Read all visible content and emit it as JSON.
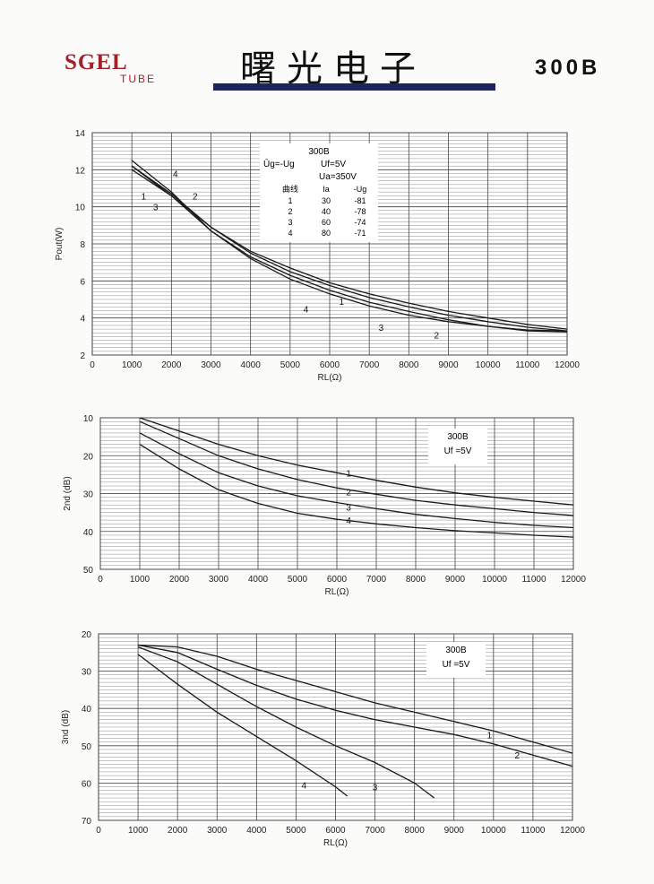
{
  "header": {
    "logo_main": "SGEL",
    "logo_sub": "TUBE",
    "company": "曙光电子",
    "model_code": "300B",
    "colors": {
      "logo": "#a3202a",
      "bar": "#1e2460"
    }
  },
  "chart_data": [
    {
      "type": "line",
      "xlabel": "RL(Ω)",
      "ylabel": "Pout(W)",
      "xlim": [
        0,
        12000
      ],
      "ylim": [
        2,
        14
      ],
      "x_ticks": [
        0,
        1000,
        2000,
        3000,
        4000,
        5000,
        6000,
        7000,
        8000,
        9000,
        10000,
        11000,
        12000
      ],
      "y_ticks": [
        2,
        4,
        6,
        8,
        10,
        12,
        14
      ],
      "grid": true,
      "legend": {
        "title": "300B",
        "line1_left": "Ūg=-Ug",
        "line1_right": "Uf=5V",
        "line2": "Ua=350V",
        "columns": [
          "曲线",
          "Ia",
          "-Ug"
        ],
        "rows": [
          [
            "1",
            "30",
            "-81"
          ],
          [
            "2",
            "40",
            "-78"
          ],
          [
            "3",
            "60",
            "-74"
          ],
          [
            "4",
            "80",
            "-71"
          ]
        ]
      },
      "series": [
        {
          "label": "1",
          "label_at": [
            [
              6300,
              4.9
            ],
            [
              1300,
              10.6
            ]
          ],
          "x": [
            1000,
            2000,
            3000,
            4000,
            5000,
            6000,
            7000,
            8000,
            9000,
            10000,
            11000,
            12000
          ],
          "y": [
            12.2,
            10.7,
            8.9,
            7.6,
            6.7,
            5.9,
            5.3,
            4.8,
            4.35,
            4.0,
            3.65,
            3.4
          ]
        },
        {
          "label": "2",
          "label_at": [
            [
              8700,
              3.1
            ],
            [
              2600,
              10.6
            ]
          ],
          "x": [
            1000,
            2000,
            3000,
            4000,
            5000,
            6000,
            7000,
            8000,
            9000,
            10000,
            11000,
            12000
          ],
          "y": [
            12.0,
            10.6,
            8.9,
            7.5,
            6.5,
            5.75,
            5.1,
            4.6,
            4.15,
            3.8,
            3.5,
            3.3
          ]
        },
        {
          "label": "3",
          "label_at": [
            [
              7300,
              3.5
            ],
            [
              1600,
              10.0
            ]
          ],
          "x": [
            1000,
            2000,
            3000,
            4000,
            5000,
            6000,
            7000,
            8000,
            9000,
            10000,
            11000,
            12000
          ],
          "y": [
            12.2,
            10.6,
            8.7,
            7.3,
            6.3,
            5.5,
            4.85,
            4.35,
            3.9,
            3.55,
            3.3,
            3.25
          ]
        },
        {
          "label": "4",
          "label_at": [
            [
              5400,
              4.5
            ],
            [
              2100,
              11.8
            ]
          ],
          "x": [
            1000,
            2000,
            3000,
            4000,
            5000,
            6000,
            7000,
            8000,
            9000,
            10000,
            11000,
            12000
          ],
          "y": [
            12.5,
            10.8,
            8.7,
            7.2,
            6.1,
            5.3,
            4.65,
            4.15,
            3.8,
            3.55,
            3.35,
            3.3
          ]
        }
      ]
    },
    {
      "type": "line",
      "xlabel": "RL(Ω)",
      "ylabel": "2nd (dB)",
      "xlim": [
        0,
        12000
      ],
      "ylim": [
        10,
        50
      ],
      "y_inverted": true,
      "x_ticks": [
        0,
        1000,
        2000,
        3000,
        4000,
        5000,
        6000,
        7000,
        8000,
        9000,
        10000,
        11000,
        12000
      ],
      "y_ticks": [
        10,
        20,
        30,
        40,
        50
      ],
      "grid": true,
      "legend": {
        "title": "300B",
        "line1": "Uf =5V"
      },
      "series": [
        {
          "label": "1",
          "label_at": [
            [
              6300,
              24.5
            ]
          ],
          "x": [
            1000,
            2000,
            3000,
            4000,
            5000,
            6000,
            7000,
            8000,
            9000,
            10000,
            11000,
            12000
          ],
          "y": [
            10.0,
            13.5,
            17.0,
            20.0,
            22.5,
            24.5,
            26.5,
            28.3,
            29.8,
            31.0,
            32.0,
            33.0
          ]
        },
        {
          "label": "2",
          "label_at": [
            [
              6300,
              29.5
            ]
          ],
          "x": [
            1000,
            2000,
            3000,
            4000,
            5000,
            6000,
            7000,
            8000,
            9000,
            10000,
            11000,
            12000
          ],
          "y": [
            11.0,
            15.5,
            20.0,
            23.5,
            26.3,
            28.5,
            30.2,
            31.8,
            33.0,
            34.0,
            35.0,
            35.8
          ]
        },
        {
          "label": "3",
          "label_at": [
            [
              6300,
              33.5
            ]
          ],
          "x": [
            1000,
            2000,
            3000,
            4000,
            5000,
            6000,
            7000,
            8000,
            9000,
            10000,
            11000,
            12000
          ],
          "y": [
            14.0,
            19.5,
            24.5,
            28.0,
            30.6,
            32.4,
            34.0,
            35.5,
            36.6,
            37.6,
            38.4,
            39.0
          ]
        },
        {
          "label": "4",
          "label_at": [
            [
              6300,
              37.0
            ]
          ],
          "x": [
            1000,
            2000,
            3000,
            4000,
            5000,
            6000,
            7000,
            8000,
            9000,
            10000,
            11000,
            12000
          ],
          "y": [
            17.0,
            23.5,
            29.0,
            32.6,
            35.2,
            36.8,
            38.0,
            39.0,
            39.8,
            40.4,
            41.0,
            41.5
          ]
        }
      ]
    },
    {
      "type": "line",
      "xlabel": "RL(Ω)",
      "ylabel": "3nd (dB)",
      "xlim": [
        0,
        12000
      ],
      "ylim": [
        20,
        70
      ],
      "y_inverted": true,
      "x_ticks": [
        0,
        1000,
        2000,
        3000,
        4000,
        5000,
        6000,
        7000,
        8000,
        9000,
        10000,
        11000,
        12000
      ],
      "y_ticks": [
        20,
        30,
        40,
        50,
        60,
        70
      ],
      "grid": true,
      "legend": {
        "title": "300B",
        "line1": "Uf =5V"
      },
      "series": [
        {
          "label": "1",
          "label_at": [
            [
              9900,
              47.0
            ]
          ],
          "x": [
            1000,
            2000,
            3000,
            4000,
            5000,
            6000,
            7000,
            8000,
            9000,
            10000,
            11000,
            12000
          ],
          "y": [
            23.0,
            23.5,
            26.0,
            29.5,
            32.5,
            35.5,
            38.5,
            41.0,
            43.5,
            46.0,
            49.0,
            52.0
          ]
        },
        {
          "label": "2",
          "label_at": [
            [
              10600,
              52.5
            ]
          ],
          "x": [
            1000,
            2000,
            3000,
            4000,
            5000,
            6000,
            7000,
            8000,
            9000,
            10000,
            11000,
            12000
          ],
          "y": [
            23.0,
            25.0,
            29.5,
            33.8,
            37.5,
            40.5,
            43.0,
            45.0,
            47.0,
            49.5,
            52.5,
            55.5
          ]
        },
        {
          "label": "3",
          "label_at": [
            [
              7000,
              61.0
            ]
          ],
          "x": [
            1000,
            2000,
            3000,
            4000,
            5000,
            6000,
            7000,
            8000,
            8500
          ],
          "y": [
            23.5,
            27.5,
            33.5,
            39.5,
            45.0,
            50.0,
            54.5,
            60.0,
            64.0
          ]
        },
        {
          "label": "4",
          "label_at": [
            [
              5200,
              60.5
            ]
          ],
          "x": [
            1000,
            2000,
            3000,
            4000,
            5000,
            6000,
            6300
          ],
          "y": [
            25.5,
            33.5,
            41.0,
            47.5,
            54.0,
            61.0,
            63.5
          ]
        }
      ]
    }
  ]
}
